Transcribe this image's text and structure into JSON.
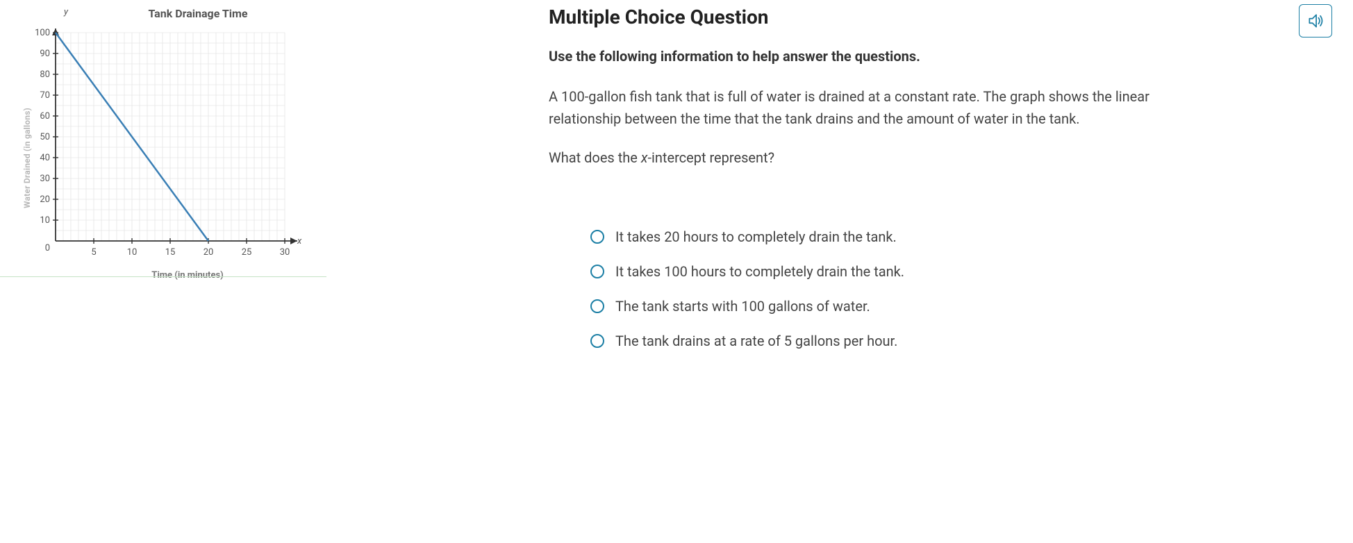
{
  "chart": {
    "type": "line",
    "title": "Tank Drainage Time",
    "x_axis_label": "Time (in minutes)",
    "y_axis_label": "Water Drained (in gallons)",
    "x_letter": "x",
    "y_letter": "y",
    "xlim": [
      0,
      30
    ],
    "ylim": [
      0,
      100
    ],
    "x_ticks": [
      5,
      10,
      15,
      20,
      25,
      30
    ],
    "y_ticks": [
      10,
      20,
      30,
      40,
      50,
      60,
      70,
      80,
      90,
      100
    ],
    "origin_label": "0",
    "grid_x_step": 1,
    "grid_y_step": 5,
    "line_points": [
      [
        0,
        100
      ],
      [
        20,
        0
      ]
    ],
    "line_color": "#3a7fb5",
    "line_width": 2.5,
    "axis_color": "#333333",
    "grid_color": "#dddddd",
    "tick_font_size": 13,
    "tick_color": "#555555",
    "background_color": "#ffffff"
  },
  "question": {
    "heading": "Multiple Choice Question",
    "instruction": "Use the following information to help answer the questions.",
    "body": "A 100-gallon fish tank that is full of water is drained at a constant rate. The graph shows the linear relationship between the time that the tank drains and the amount of water in the tank.",
    "prompt_prefix": "What does the ",
    "prompt_var": "x",
    "prompt_suffix": "-intercept represent?",
    "options": [
      "It takes 20 hours to completely drain the tank.",
      "It takes 100 hours to completely drain the tank.",
      "The tank starts with 100 gallons of water.",
      "The tank drains at a rate of 5 gallons per hour."
    ]
  },
  "colors": {
    "accent": "#1c7fa5"
  }
}
